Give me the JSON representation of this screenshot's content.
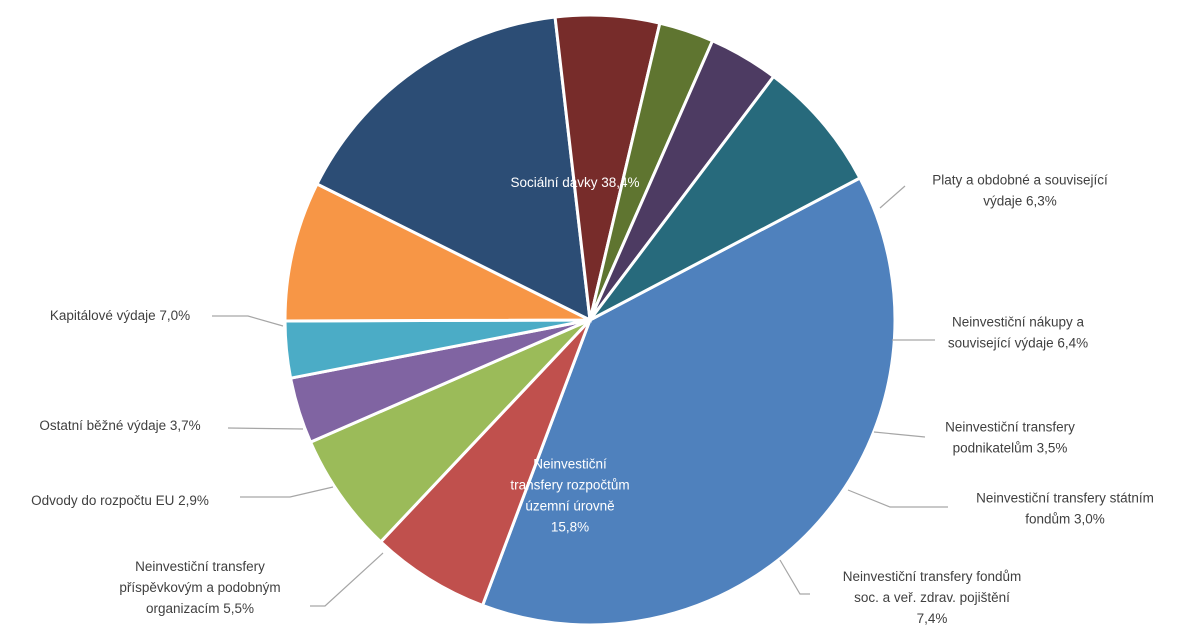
{
  "chart_data": {
    "type": "pie",
    "title": "",
    "slices": [
      {
        "name": "Sociální dávky",
        "value": 38.4,
        "label": "Sociální dávky 38,4%",
        "color": "#4F81BD"
      },
      {
        "name": "Platy a obdobné a související výdaje",
        "value": 6.3,
        "label": "Platy a obdobné a související výdaje 6,3%",
        "color": "#C0504D"
      },
      {
        "name": "Neinvestiční nákupy a související výdaje",
        "value": 6.4,
        "label": "Neinvestiční nákupy a související výdaje 6,4%",
        "color": "#9BBB59"
      },
      {
        "name": "Neinvestiční transfery podnikatelům",
        "value": 3.5,
        "label": "Neinvestiční transfery podnikatelům 3,5%",
        "color": "#8064A2"
      },
      {
        "name": "Neinvestiční transfery státním fondům",
        "value": 3.0,
        "label": "Neinvestiční transfery státním fondům 3,0%",
        "color": "#4BACC6"
      },
      {
        "name": "Neinvestiční transfery fondům soc. a veř. zdrav. pojištění",
        "value": 7.4,
        "label": "Neinvestiční transfery fondům soc. a veř. zdrav. pojištění 7,4%",
        "color": "#F79646"
      },
      {
        "name": "Neinvestiční transfery rozpočtům územní úrovně",
        "value": 15.8,
        "label": "Neinvestiční transfery rozpočtům územní úrovně 15,8%",
        "color": "#2C4D75"
      },
      {
        "name": "Neinvestiční transfery příspěvkovým a podobným organizacím",
        "value": 5.5,
        "label": "Neinvestiční transfery příspěvkovým a podobným organizacím 5,5%",
        "color": "#772C2A"
      },
      {
        "name": "Odvody do rozpočtu EU",
        "value": 2.9,
        "label": "Odvody do rozpočtu EU 2,9%",
        "color": "#5F7530"
      },
      {
        "name": "Ostatní běžné výdaje",
        "value": 3.7,
        "label": "Ostatní běžné výdaje 3,7%",
        "color": "#4D3B62"
      },
      {
        "name": "Kapitálové výdaje",
        "value": 7.0,
        "label": "Kapitálové výdaje 7,0%",
        "color": "#276A7C"
      }
    ]
  }
}
